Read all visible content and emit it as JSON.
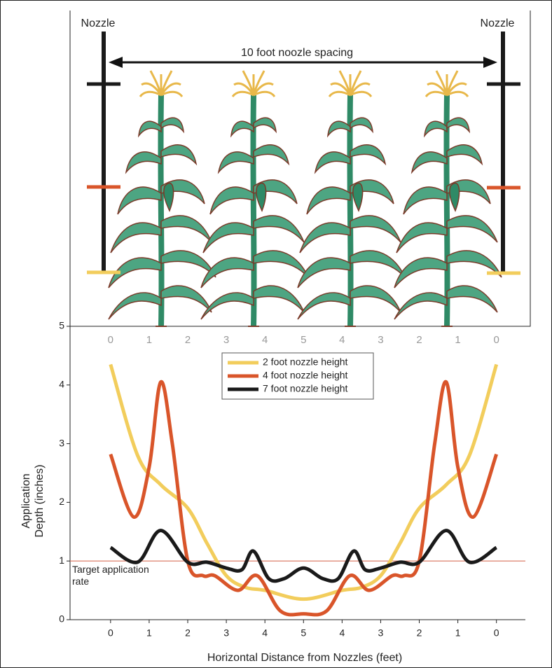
{
  "header": {
    "nozzle_left": "Nozzle",
    "nozzle_right": "Nozzle",
    "spacing": "10 foot noozle spacing"
  },
  "chart_data": {
    "type": "line",
    "xlabel": "Horizontal Distance from Nozzles (feet)",
    "ylabel": [
      "Application",
      "Depth (inches)"
    ],
    "annotation": "Target application rate",
    "target": 1,
    "target_color": "#d9705a",
    "xlim": [
      -1.05,
      10.75
    ],
    "ylim": [
      0,
      5
    ],
    "xticks": [
      0,
      1,
      2,
      3,
      4,
      5,
      {
        "value": 6,
        "label": "4"
      },
      {
        "value": 7,
        "label": "3"
      },
      {
        "value": 8,
        "label": "2"
      },
      {
        "value": 9,
        "label": "1"
      },
      {
        "value": 10,
        "label": "0"
      }
    ],
    "yticks": [
      0,
      1,
      2,
      3,
      4,
      5
    ],
    "legend": "top center",
    "series": [
      {
        "name": "2 foot nozzle height",
        "color": "#f2cd5c",
        "x": [
          0,
          0.7,
          1.3,
          2,
          2.5,
          3,
          3.5,
          4,
          5,
          6,
          6.5,
          7,
          7.5,
          8,
          8.7,
          9.3,
          10
        ],
        "values": [
          4.35,
          2.8,
          2.3,
          1.9,
          1.3,
          0.75,
          0.55,
          0.5,
          0.35,
          0.5,
          0.55,
          0.75,
          1.3,
          1.9,
          2.3,
          2.8,
          4.35
        ]
      },
      {
        "name": "4 foot nozzle height",
        "color": "#d9552a",
        "x": [
          0,
          0.6,
          1.0,
          1.3,
          1.6,
          2.0,
          2.4,
          2.7,
          3.3,
          3.8,
          4.4,
          5,
          5.6,
          6.2,
          6.7,
          7.3,
          7.6,
          8.0,
          8.4,
          8.7,
          9.0,
          9.4,
          10
        ],
        "values": [
          2.82,
          1.75,
          2.6,
          4.05,
          3.0,
          1.0,
          0.75,
          0.75,
          0.5,
          0.75,
          0.15,
          0.1,
          0.15,
          0.75,
          0.5,
          0.75,
          0.75,
          1.0,
          3.0,
          4.05,
          2.6,
          1.75,
          2.82
        ]
      },
      {
        "name": "7 foot nozzle height",
        "color": "#1a1a1a",
        "x": [
          0,
          0.7,
          1.3,
          2.0,
          2.5,
          3.0,
          3.4,
          3.7,
          4.1,
          4.5,
          5,
          5.5,
          5.9,
          6.3,
          6.6,
          7.0,
          7.5,
          8.0,
          8.7,
          9.3,
          10
        ],
        "values": [
          1.23,
          0.98,
          1.52,
          0.98,
          0.98,
          0.88,
          0.85,
          1.17,
          0.7,
          0.7,
          0.88,
          0.7,
          0.7,
          1.17,
          0.85,
          0.88,
          0.98,
          0.98,
          1.52,
          0.98,
          1.23
        ]
      }
    ]
  }
}
